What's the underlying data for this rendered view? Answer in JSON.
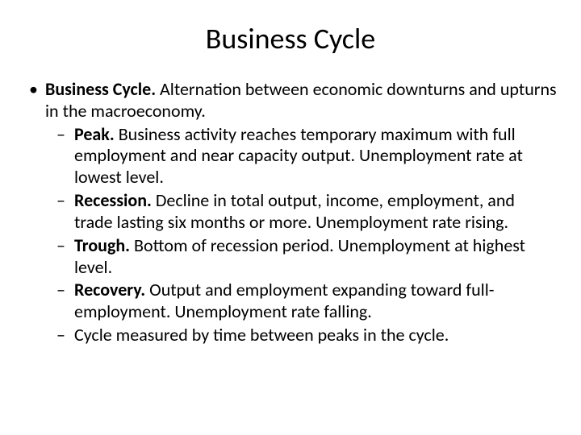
{
  "slide": {
    "title": "Business Cycle",
    "title_fontsize": 36,
    "body_fontsize": 22,
    "background_color": "#ffffff",
    "text_color": "#000000",
    "bullets": [
      {
        "term": "Business Cycle.",
        "text": "  Alternation between economic downturns and upturns in the macroeconomy.",
        "sub": [
          {
            "term": "Peak.",
            "text": "  Business activity reaches temporary maximum with full employment and near capacity output.  Unemployment rate at lowest level."
          },
          {
            "term": "Recession.",
            "text": "  Decline in total output, income, employment, and trade lasting six months or more.  Unemployment rate rising."
          },
          {
            "term": "Trough.",
            "text": "  Bottom of recession period.  Unemployment at highest level."
          },
          {
            "term": "Recovery.",
            "text": "  Output and employment expanding toward full-employment.  Unemployment rate falling."
          },
          {
            "term": "",
            "text": "Cycle measured by time between peaks in the cycle."
          }
        ]
      }
    ]
  }
}
